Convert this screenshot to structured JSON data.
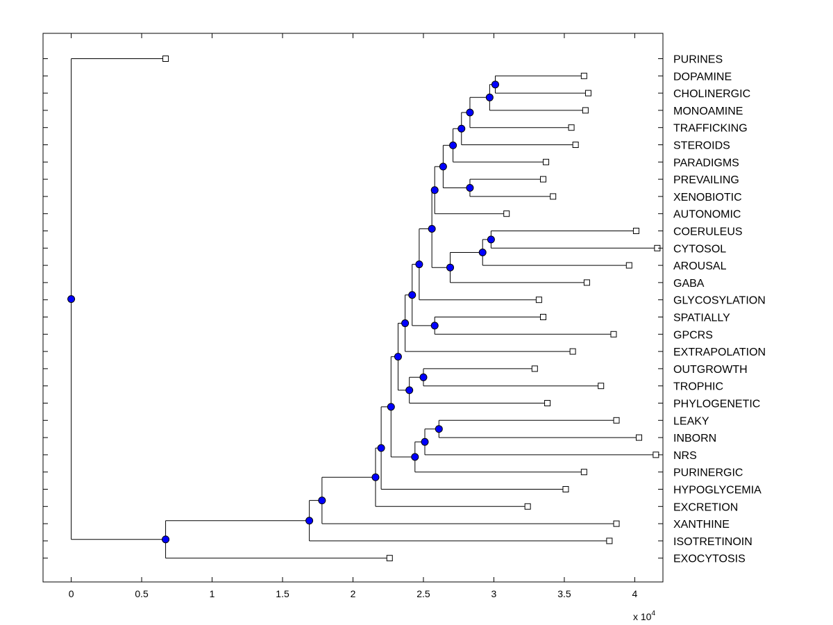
{
  "chart_data": {
    "type": "dendrogram",
    "orientation": "horizontal",
    "x_multiplier_label": "x 10",
    "x_multiplier_exponent": "4",
    "xlim": [
      -0.2,
      4.2
    ],
    "xticks": [
      0,
      0.5,
      1,
      1.5,
      2,
      2.5,
      3,
      3.5,
      4
    ],
    "xtick_labels": [
      "0",
      "0.5",
      "1",
      "1.5",
      "2",
      "2.5",
      "3",
      "3.5",
      "4"
    ],
    "leaves": [
      {
        "label": "PURINES",
        "value": 0.67
      },
      {
        "label": "DOPAMINE",
        "value": 3.64
      },
      {
        "label": "CHOLINERGIC",
        "value": 3.67
      },
      {
        "label": "MONOAMINE",
        "value": 3.65
      },
      {
        "label": "TRAFFICKING",
        "value": 3.55
      },
      {
        "label": "STEROIDS",
        "value": 3.58
      },
      {
        "label": "PARADIGMS",
        "value": 3.37
      },
      {
        "label": "PREVAILING",
        "value": 3.35
      },
      {
        "label": "XENOBIOTIC",
        "value": 3.42
      },
      {
        "label": "AUTONOMIC",
        "value": 3.09
      },
      {
        "label": "COERULEUS",
        "value": 4.01
      },
      {
        "label": "CYTOSOL",
        "value": 4.16
      },
      {
        "label": "AROUSAL",
        "value": 3.96
      },
      {
        "label": "GABA",
        "value": 3.66
      },
      {
        "label": "GLYCOSYLATION",
        "value": 3.32
      },
      {
        "label": "SPATIALLY",
        "value": 3.35
      },
      {
        "label": "GPCRS",
        "value": 3.85
      },
      {
        "label": "EXTRAPOLATION",
        "value": 3.56
      },
      {
        "label": "OUTGROWTH",
        "value": 3.29
      },
      {
        "label": "TROPHIC",
        "value": 3.76
      },
      {
        "label": "PHYLOGENETIC",
        "value": 3.38
      },
      {
        "label": "LEAKY",
        "value": 3.87
      },
      {
        "label": "INBORN",
        "value": 4.03
      },
      {
        "label": "NRS",
        "value": 4.15
      },
      {
        "label": "PURINERGIC",
        "value": 3.64
      },
      {
        "label": "HYPOGLYCEMIA",
        "value": 3.51
      },
      {
        "label": "EXCRETION",
        "value": 3.24
      },
      {
        "label": "XANTHINE",
        "value": 3.87
      },
      {
        "label": "ISOTRETINOIN",
        "value": 3.82
      },
      {
        "label": "EXOCYTOSIS",
        "value": 2.26
      }
    ],
    "nodes": [
      {
        "id": "n1",
        "value": 3.01,
        "children": [
          "DOPAMINE",
          "CHOLINERGIC"
        ]
      },
      {
        "id": "n2",
        "value": 2.97,
        "children": [
          "n1",
          "MONOAMINE"
        ]
      },
      {
        "id": "n3",
        "value": 2.83,
        "children": [
          "n2",
          "TRAFFICKING"
        ]
      },
      {
        "id": "n4",
        "value": 2.77,
        "children": [
          "n3",
          "STEROIDS"
        ]
      },
      {
        "id": "n5",
        "value": 2.71,
        "children": [
          "n4",
          "PARADIGMS"
        ]
      },
      {
        "id": "n6",
        "value": 2.83,
        "children": [
          "PREVAILING",
          "XENOBIOTIC"
        ]
      },
      {
        "id": "n7",
        "value": 2.64,
        "children": [
          "n5",
          "n6"
        ]
      },
      {
        "id": "n8",
        "value": 2.58,
        "children": [
          "n7",
          "AUTONOMIC"
        ]
      },
      {
        "id": "n9",
        "value": 2.98,
        "children": [
          "COERULEUS",
          "CYTOSOL"
        ]
      },
      {
        "id": "n10",
        "value": 2.92,
        "children": [
          "n9",
          "AROUSAL"
        ]
      },
      {
        "id": "n11",
        "value": 2.69,
        "children": [
          "n10",
          "GABA"
        ]
      },
      {
        "id": "n12",
        "value": 2.56,
        "children": [
          "n8",
          "n11"
        ]
      },
      {
        "id": "n13",
        "value": 2.47,
        "children": [
          "n12",
          "GLYCOSYLATION"
        ]
      },
      {
        "id": "n14",
        "value": 2.58,
        "children": [
          "SPATIALLY",
          "GPCRS"
        ]
      },
      {
        "id": "n15",
        "value": 2.42,
        "children": [
          "n13",
          "n14"
        ]
      },
      {
        "id": "n16",
        "value": 2.37,
        "children": [
          "n15",
          "EXTRAPOLATION"
        ]
      },
      {
        "id": "n17",
        "value": 2.5,
        "children": [
          "OUTGROWTH",
          "TROPHIC"
        ]
      },
      {
        "id": "n18",
        "value": 2.4,
        "children": [
          "n17",
          "PHYLOGENETIC"
        ]
      },
      {
        "id": "n19",
        "value": 2.32,
        "children": [
          "n16",
          "n18"
        ]
      },
      {
        "id": "n20",
        "value": 2.61,
        "children": [
          "LEAKY",
          "INBORN"
        ]
      },
      {
        "id": "n21",
        "value": 2.51,
        "children": [
          "n20",
          "NRS"
        ]
      },
      {
        "id": "n22",
        "value": 2.44,
        "children": [
          "n21",
          "PURINERGIC"
        ]
      },
      {
        "id": "n23",
        "value": 2.27,
        "children": [
          "n19",
          "n22"
        ]
      },
      {
        "id": "n24",
        "value": 2.2,
        "children": [
          "n23",
          "HYPOGLYCEMIA"
        ]
      },
      {
        "id": "n25",
        "value": 2.16,
        "children": [
          "n24",
          "EXCRETION"
        ]
      },
      {
        "id": "n26",
        "value": 1.78,
        "children": [
          "n25",
          "XANTHINE"
        ]
      },
      {
        "id": "n27",
        "value": 1.69,
        "children": [
          "n26",
          "ISOTRETINOIN"
        ]
      },
      {
        "id": "n28",
        "value": 0.67,
        "children": [
          "n27",
          "EXOCYTOSIS"
        ]
      },
      {
        "id": "n29",
        "value": 0.0,
        "children": [
          "PURINES",
          "n28"
        ]
      }
    ],
    "node_color": "#0000ff",
    "leaf_marker": "open-square"
  }
}
